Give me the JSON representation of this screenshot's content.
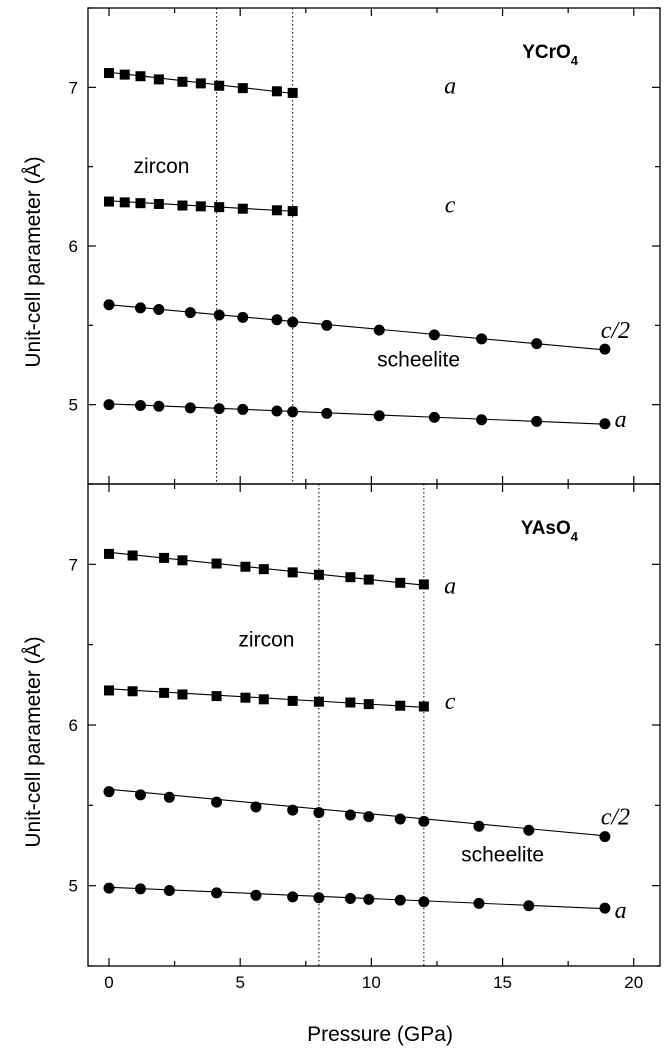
{
  "x_axis": {
    "label": "Pressure (GPa)",
    "ticks": [
      "0",
      "5",
      "10",
      "15",
      "20"
    ]
  },
  "y_axis": {
    "label": "Unit-cell parameter (Å)",
    "ticks": [
      "5",
      "6",
      "7"
    ]
  },
  "chart_data": [
    {
      "type": "scatter",
      "compound": "YCrO",
      "compound_sub": "4",
      "xlim": [
        -0.8,
        21
      ],
      "ylim": [
        4.5,
        7.5
      ],
      "transition_pressures": [
        4.1,
        7.0
      ],
      "phase_labels": [
        {
          "text": "zircon",
          "x": 2.0,
          "y": 6.46
        },
        {
          "text": "scheelite",
          "x": 11.8,
          "y": 5.24
        }
      ],
      "series": [
        {
          "name": "a",
          "phase": "zircon",
          "marker": "square",
          "label_x": 13,
          "label_y": 6.96,
          "x": [
            0,
            0.6,
            1.2,
            1.9,
            2.8,
            3.5,
            4.2,
            5.1,
            6.4,
            7.0
          ],
          "y": [
            7.09,
            7.08,
            7.07,
            7.05,
            7.035,
            7.025,
            7.01,
            6.995,
            6.975,
            6.965
          ],
          "fit": [
            [
              0,
              7.095
            ],
            [
              7.0,
              6.962
            ]
          ]
        },
        {
          "name": "c",
          "phase": "zircon",
          "marker": "square",
          "label_x": 13,
          "label_y": 6.21,
          "x": [
            0,
            0.6,
            1.2,
            1.9,
            2.8,
            3.5,
            4.2,
            5.1,
            6.4,
            7.0
          ],
          "y": [
            6.28,
            6.275,
            6.27,
            6.265,
            6.255,
            6.25,
            6.245,
            6.235,
            6.225,
            6.22
          ],
          "fit": [
            [
              0,
              6.285
            ],
            [
              7.0,
              6.219
            ]
          ]
        },
        {
          "name": "c/2",
          "phase": "scheelite",
          "marker": "circle",
          "label_x": 19.3,
          "label_y": 5.42,
          "x": [
            0,
            1.2,
            1.9,
            3.1,
            4.2,
            5.1,
            6.4,
            7.0,
            8.3,
            10.3,
            12.4,
            14.2,
            16.3,
            18.9
          ],
          "y": [
            5.63,
            5.61,
            5.6,
            5.58,
            5.565,
            5.55,
            5.535,
            5.52,
            5.5,
            5.47,
            5.44,
            5.415,
            5.385,
            5.35
          ],
          "fit": [
            [
              0,
              5.63
            ],
            [
              18.9,
              5.345
            ]
          ]
        },
        {
          "name": "a",
          "phase": "scheelite",
          "marker": "circle",
          "label_x": 19.5,
          "label_y": 4.86,
          "x": [
            0,
            1.2,
            1.9,
            3.1,
            4.2,
            5.1,
            6.4,
            7.0,
            8.3,
            10.3,
            12.4,
            14.2,
            16.3,
            18.9
          ],
          "y": [
            5.0,
            4.995,
            4.99,
            4.98,
            4.975,
            4.97,
            4.96,
            4.955,
            4.945,
            4.93,
            4.92,
            4.905,
            4.895,
            4.88
          ],
          "fit": [
            [
              0,
              5.005
            ],
            [
              18.9,
              4.877
            ]
          ]
        }
      ]
    },
    {
      "type": "scatter",
      "compound": "YAsO",
      "compound_sub": "4",
      "xlim": [
        -0.8,
        21
      ],
      "ylim": [
        4.5,
        7.5
      ],
      "transition_pressures": [
        8.0,
        12.0
      ],
      "phase_labels": [
        {
          "text": "zircon",
          "x": 6.0,
          "y": 6.49
        },
        {
          "text": "scheelite",
          "x": 15.0,
          "y": 5.15
        }
      ],
      "series": [
        {
          "name": "a",
          "phase": "zircon",
          "marker": "square",
          "label_x": 13,
          "label_y": 6.82,
          "x": [
            0,
            0.9,
            2.1,
            2.8,
            4.1,
            5.2,
            5.9,
            7.0,
            8.0,
            9.2,
            9.9,
            11.1,
            12.0
          ],
          "y": [
            7.065,
            7.055,
            7.04,
            7.025,
            7.005,
            6.985,
            6.97,
            6.95,
            6.935,
            6.92,
            6.905,
            6.885,
            6.875
          ],
          "fit": [
            [
              0,
              7.075
            ],
            [
              12.0,
              6.87
            ]
          ]
        },
        {
          "name": "c",
          "phase": "zircon",
          "marker": "square",
          "label_x": 13,
          "label_y": 6.1,
          "x": [
            0,
            0.9,
            2.1,
            2.8,
            4.1,
            5.2,
            5.9,
            7.0,
            8.0,
            9.2,
            9.9,
            11.1,
            12.0
          ],
          "y": [
            6.215,
            6.21,
            6.2,
            6.19,
            6.18,
            6.17,
            6.16,
            6.15,
            6.145,
            6.14,
            6.13,
            6.12,
            6.115
          ],
          "fit": [
            [
              0,
              6.225
            ],
            [
              12.0,
              6.11
            ]
          ]
        },
        {
          "name": "c/2",
          "phase": "scheelite",
          "marker": "circle",
          "label_x": 19.3,
          "label_y": 5.38,
          "x": [
            0,
            1.2,
            2.3,
            4.1,
            5.6,
            7.0,
            8.0,
            9.2,
            9.9,
            11.1,
            12.0,
            14.1,
            16.0,
            18.9
          ],
          "y": [
            5.585,
            5.565,
            5.55,
            5.52,
            5.49,
            5.47,
            5.455,
            5.44,
            5.43,
            5.415,
            5.4,
            5.37,
            5.345,
            5.305
          ],
          "fit": [
            [
              0,
              5.6
            ],
            [
              18.9,
              5.31
            ]
          ]
        },
        {
          "name": "a",
          "phase": "scheelite",
          "marker": "circle",
          "label_x": 19.5,
          "label_y": 4.8,
          "x": [
            0,
            1.2,
            2.3,
            4.1,
            5.6,
            7.0,
            8.0,
            9.2,
            9.9,
            11.1,
            12.0,
            14.1,
            16.0,
            18.9
          ],
          "y": [
            4.985,
            4.98,
            4.97,
            4.955,
            4.94,
            4.93,
            4.925,
            4.92,
            4.915,
            4.91,
            4.9,
            4.89,
            4.875,
            4.86
          ],
          "fit": [
            [
              0,
              4.99
            ],
            [
              18.9,
              4.857
            ]
          ]
        }
      ]
    }
  ]
}
